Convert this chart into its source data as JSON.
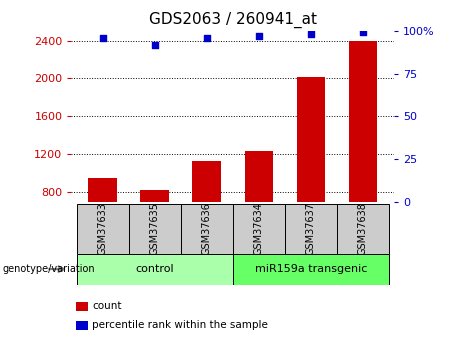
{
  "title": "GDS2063 / 260941_at",
  "samples": [
    "GSM37633",
    "GSM37635",
    "GSM37636",
    "GSM37634",
    "GSM37637",
    "GSM37638"
  ],
  "counts": [
    950,
    820,
    1130,
    1240,
    2020,
    2400
  ],
  "percentile_ranks": [
    96,
    92,
    96,
    97,
    98,
    99.5
  ],
  "ylim_left": [
    700,
    2500
  ],
  "ylim_right": [
    0,
    100
  ],
  "yticks_left": [
    800,
    1200,
    1600,
    2000,
    2400
  ],
  "yticks_right": [
    0,
    25,
    50,
    75,
    100
  ],
  "ytick_right_labels": [
    "0",
    "25",
    "50",
    "75",
    "100%"
  ],
  "bar_color": "#cc0000",
  "scatter_color": "#0000cc",
  "bar_bottom": 700,
  "groups": [
    {
      "label": "control",
      "indices": [
        0,
        1,
        2
      ],
      "color": "#aaffaa"
    },
    {
      "label": "miR159a transgenic",
      "indices": [
        3,
        4,
        5
      ],
      "color": "#66ff66"
    }
  ],
  "genotype_label": "genotype/variation",
  "legend_items": [
    {
      "color": "#cc0000",
      "label": "count"
    },
    {
      "color": "#0000cc",
      "label": "percentile rank within the sample"
    }
  ],
  "left_tick_color": "#cc0000",
  "right_tick_color": "#0000cc",
  "title_fontsize": 11,
  "tick_fontsize": 8,
  "bar_width": 0.55
}
